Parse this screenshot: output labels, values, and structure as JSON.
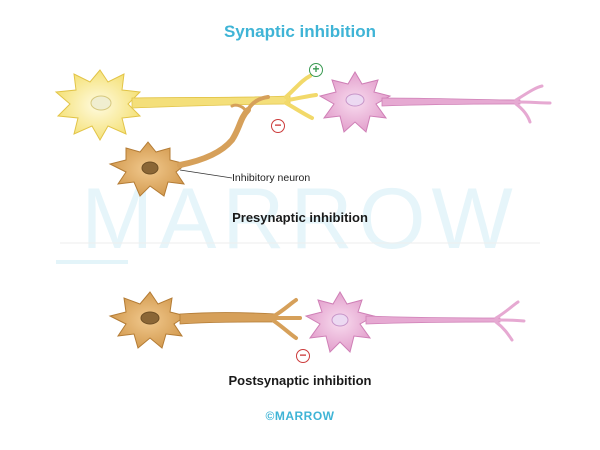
{
  "title": "Synaptic inhibition",
  "watermark": "MARROW",
  "presynaptic_caption": "Presynaptic inhibition",
  "postsynaptic_caption": "Postsynaptic inhibition",
  "inhibitory_label": "Inhibitory neuron",
  "excitatory_sign": "+",
  "inhibitory_sign": "−",
  "logo": "©MARROW",
  "colors": {
    "title": "#3fb4d6",
    "excitatory_neuron": "#f6e58a",
    "inhibitory_neuron": "#d9a35a",
    "postsynaptic_neuron": "#e6a9d2",
    "nucleus_pink": "#e9d4ee",
    "nucleus_brown": "#8a6636"
  }
}
